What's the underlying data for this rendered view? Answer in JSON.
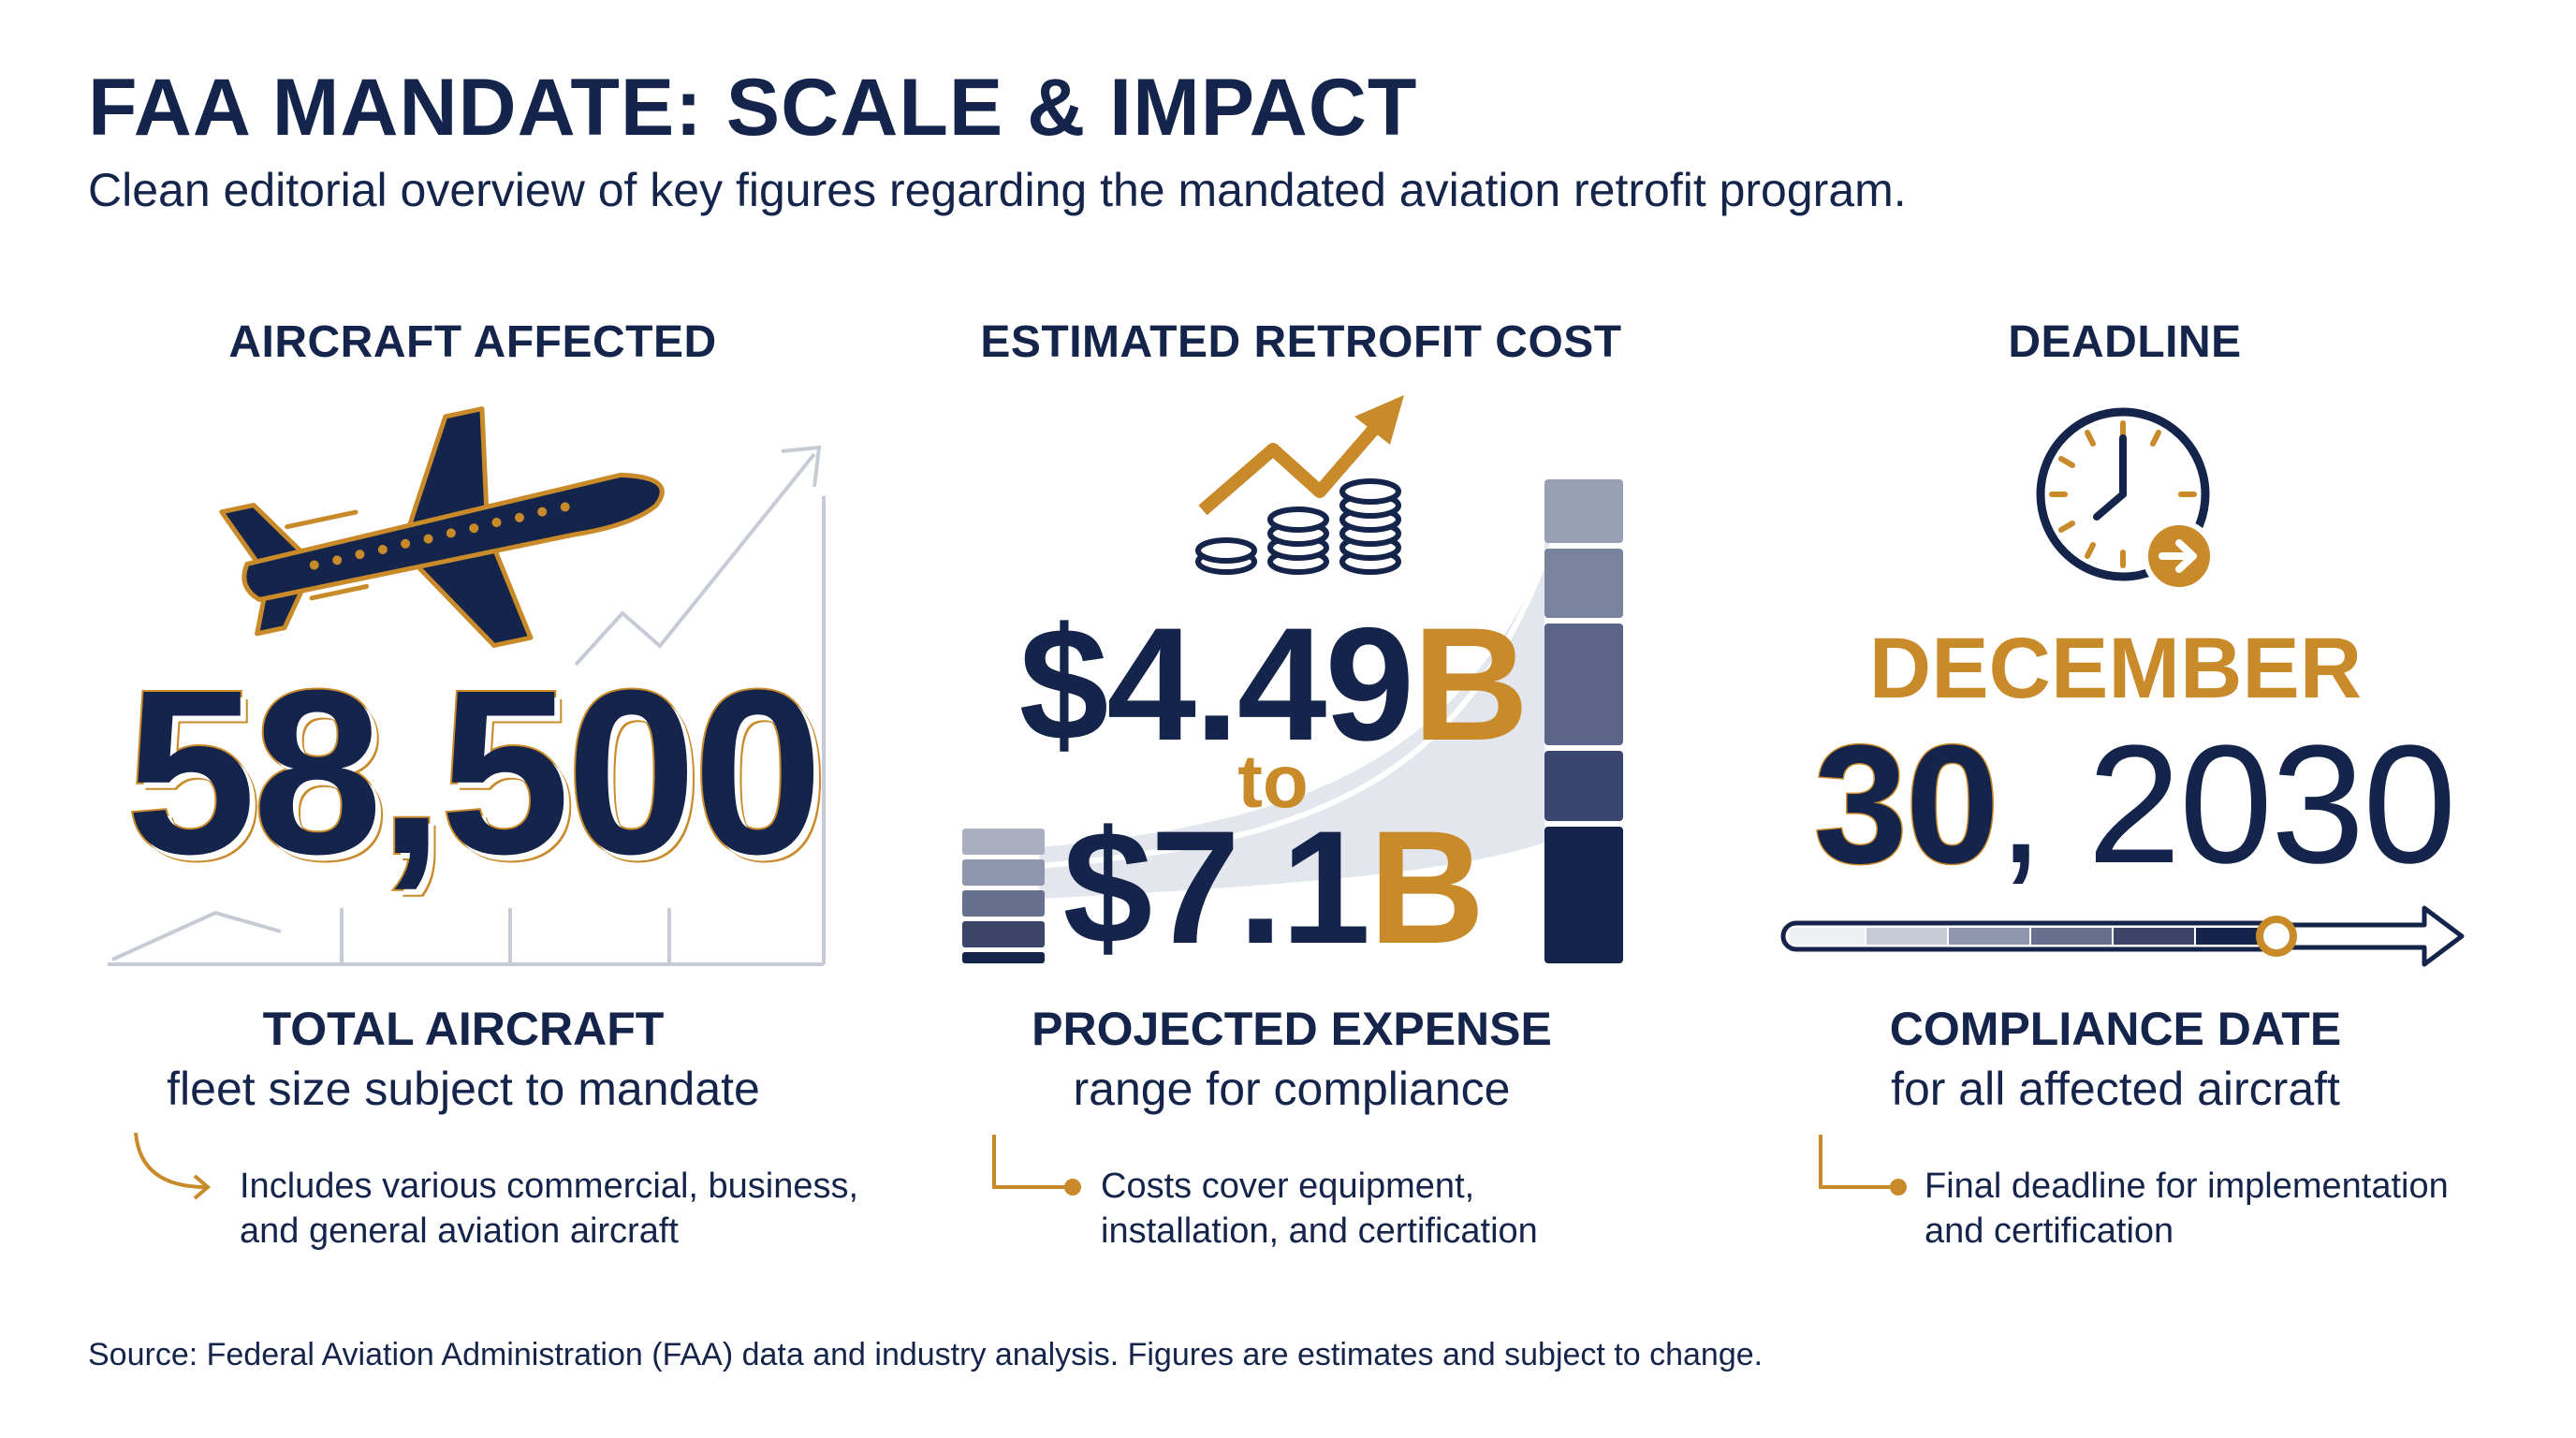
{
  "title": "FAA MANDATE: SCALE & IMPACT",
  "subtitle": "Clean editorial overview of key figures regarding the mandated aviation retrofit program.",
  "columns": [
    {
      "heading": "AIRCRAFT AFFECTED",
      "value": "58,500",
      "label": "TOTAL AIRCRAFT",
      "sublabel": "fleet size subject to mandate",
      "note_line1": "Includes various commercial, business,",
      "note_line2": "and general aviation aircraft"
    },
    {
      "heading": "ESTIMATED RETROFIT COST",
      "value_low_number": "$4.49",
      "value_low_unit": "B",
      "connector": "to",
      "value_high_number": "$7.1",
      "value_high_unit": "B",
      "label": "PROJECTED EXPENSE",
      "sublabel": "range for compliance",
      "note_line1": "Costs cover equipment,",
      "note_line2": "installation, and certification"
    },
    {
      "heading": "DEADLINE",
      "month": "DECEMBER",
      "day": "30",
      "year_part": ", 2030",
      "label": "COMPLIANCE DATE",
      "sublabel": "for all affected aircraft",
      "note_line1": "Final deadline for implementation",
      "note_line2": "and certification"
    }
  ],
  "source": "Source: Federal Aviation Administration (FAA) data and industry analysis. Figures are estimates and subject to change.",
  "icons": [
    "airplane-icon",
    "trend-arrow-icon",
    "coin-stack-icon",
    "clock-icon",
    "arrow-right-icon"
  ],
  "colors": {
    "navy": "#14244a",
    "gold": "#c98a2a",
    "grey": "#c7cbd6"
  }
}
